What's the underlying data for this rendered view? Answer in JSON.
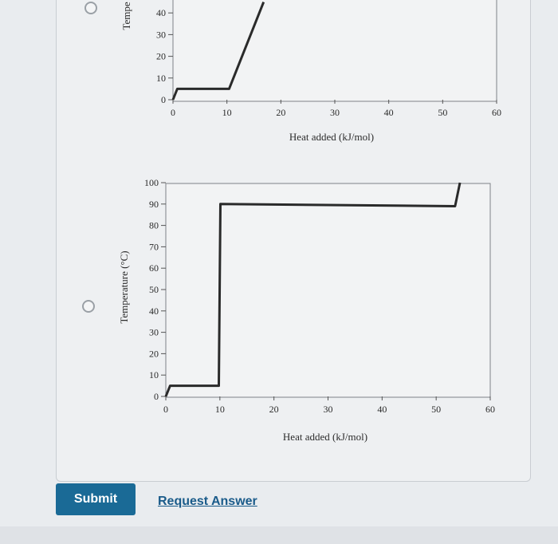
{
  "options": [
    {
      "id": "option-top"
    },
    {
      "id": "option-bottom"
    }
  ],
  "buttons": {
    "submit": "Submit",
    "request_answer": "Request Answer"
  },
  "chart_data": [
    {
      "type": "line",
      "title": "",
      "xlabel": "Heat added (kJ/mol)",
      "ylabel": "Tempe",
      "xlim": [
        0,
        60
      ],
      "ylim": [
        0,
        40
      ],
      "xticks": [
        0,
        10,
        20,
        30,
        40,
        50,
        60
      ],
      "yticks": [
        0,
        10,
        20,
        30,
        40
      ],
      "series": [
        {
          "x": [
            0,
            0.8,
            10.4,
            16.8
          ],
          "y": [
            0,
            5,
            5,
            45
          ]
        }
      ]
    },
    {
      "type": "line",
      "title": "",
      "xlabel": "Heat added (kJ/mol)",
      "ylabel": "Temperature (°C)",
      "xlim": [
        0,
        60
      ],
      "ylim": [
        0,
        100
      ],
      "xticks": [
        0,
        10,
        20,
        30,
        40,
        50,
        60
      ],
      "yticks": [
        0,
        10,
        20,
        30,
        40,
        50,
        60,
        70,
        80,
        90,
        100
      ],
      "series": [
        {
          "x": [
            0,
            0.8,
            9.8,
            10.1,
            53.5,
            54.4
          ],
          "y": [
            0,
            5,
            5,
            90,
            89,
            100
          ]
        }
      ]
    }
  ]
}
